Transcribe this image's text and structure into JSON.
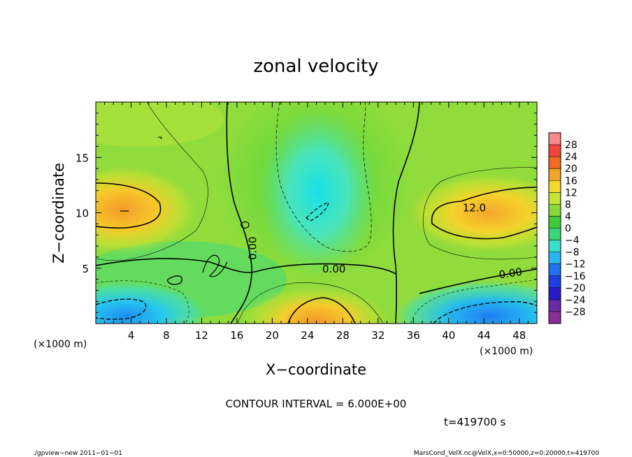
{
  "chart_data": {
    "type": "heatmap",
    "title": "zonal velocity",
    "xlabel": "X−coordinate",
    "ylabel": "Z−coordinate",
    "x_unit_label": "(×1000 m)",
    "y_unit_label": "(×1000 m)",
    "xlim": [
      0,
      50
    ],
    "ylim": [
      0,
      20
    ],
    "x_ticks": [
      4,
      8,
      12,
      16,
      20,
      24,
      28,
      32,
      36,
      40,
      44,
      48
    ],
    "y_ticks": [
      5,
      10,
      15
    ],
    "colorbar_levels": [
      28,
      24,
      20,
      16,
      12,
      8,
      4,
      0,
      -4,
      -8,
      -12,
      -16,
      -20,
      -24,
      -28
    ],
    "colorbar_labels": [
      "28",
      "24",
      "20",
      "16",
      "12",
      "8",
      "4",
      "0",
      "−4",
      "−8",
      "−12",
      "−16",
      "−20",
      "−24",
      "−28"
    ],
    "contour_labels": [
      {
        "text": "12.0",
        "x": 42.9,
        "z": 10.5
      },
      {
        "text": "0.00",
        "x": 27.0,
        "z": 5.0
      },
      {
        "text": "0.00",
        "x": 17.7,
        "z": 6.8
      },
      {
        "text": "0.00",
        "x": 47.0,
        "z": 4.6
      }
    ],
    "contour_interval_text": "CONTOUR INTERVAL = 6.000E+00",
    "time_text": "t=419700 s",
    "footer_left": "./gpview−new   2011−01−01",
    "footer_right": "MarsCond_VelX.nc@VelX,x=0:50000,z=0:20000,t=419700"
  }
}
